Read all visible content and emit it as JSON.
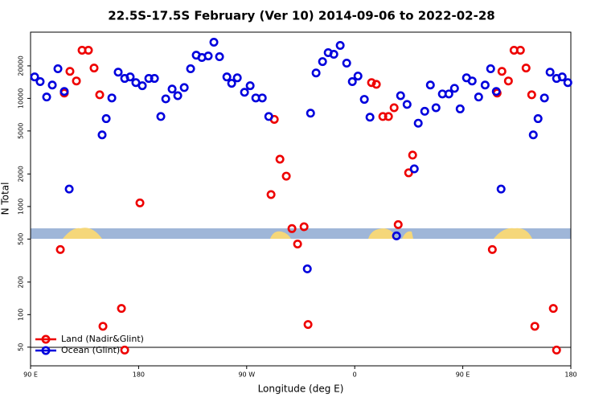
{
  "chart_data": {
    "type": "scatter",
    "title": "22.5S-17.5S February (Ver 10)   2014-09-06 to 2022-02-28",
    "xlabel": "Longitude (deg E)",
    "ylabel": "N Total",
    "xlim": [
      90,
      540
    ],
    "xticks": [
      {
        "value": 90,
        "label": "90 E"
      },
      {
        "value": 180,
        "label": "180"
      },
      {
        "value": 270,
        "label": "90 W"
      },
      {
        "value": 360,
        "label": "0"
      },
      {
        "value": 450,
        "label": "90 E"
      },
      {
        "value": 540,
        "label": "180"
      }
    ],
    "ylim": [
      33.6,
      41000
    ],
    "log_y": true,
    "yticks": [
      50,
      100,
      200,
      500,
      1000,
      2000,
      5000,
      10000,
      20000
    ],
    "legend": "lower left",
    "series": [
      {
        "name": "Land (Nadir&Glint)",
        "color": "#ee0000",
        "x": [
          114.8,
          118.1,
          122.8,
          128.2,
          132.9,
          138.2,
          142.9,
          147.6,
          150.3,
          165.7,
          168.4,
          181.1,
          290.3,
          293.0,
          297.7,
          303.0,
          307.7,
          312.4,
          317.8,
          321.1,
          374.0,
          378.0,
          383.4,
          388.1,
          392.8,
          396.2,
          404.9,
          408.2,
          474.6,
          478.6,
          482.6,
          488.0,
          492.7,
          498.0,
          502.7,
          507.4,
          510.0,
          525.4,
          528.1
        ],
        "values": [
          400,
          11200,
          17800,
          14500,
          27900,
          27900,
          19100,
          10800,
          78,
          114,
          47,
          1080,
          1290,
          6400,
          2740,
          1910,
          625,
          450,
          650,
          81,
          14000,
          13500,
          6800,
          6800,
          8200,
          680,
          2050,
          2990,
          400,
          11200,
          17800,
          14500,
          27900,
          27900,
          19100,
          10800,
          78,
          114,
          47
        ]
      },
      {
        "name": "Ocean (Glint)",
        "color": "#0000dd",
        "x": [
          93.4,
          98.0,
          103.4,
          108.1,
          112.8,
          118.1,
          122.2,
          149.6,
          153.0,
          157.7,
          163.0,
          168.4,
          173.0,
          177.7,
          183.1,
          188.5,
          193.2,
          198.5,
          202.6,
          207.9,
          212.6,
          218.0,
          223.3,
          228.0,
          232.7,
          238.0,
          242.7,
          247.4,
          253.5,
          257.5,
          262.2,
          268.2,
          272.9,
          277.6,
          283.0,
          288.4,
          320.5,
          323.2,
          327.8,
          333.2,
          337.9,
          342.6,
          347.9,
          353.3,
          358.0,
          362.7,
          368.0,
          372.7,
          394.8,
          398.2,
          403.6,
          409.6,
          412.9,
          418.3,
          423.0,
          427.7,
          433.0,
          438.4,
          443.1,
          447.8,
          453.1,
          457.8,
          463.2,
          468.6,
          473.2,
          477.9,
          481.9,
          508.7,
          512.7,
          518.0,
          522.7,
          528.1,
          532.8,
          537.5
        ],
        "values": [
          15800,
          14300,
          10300,
          13300,
          18800,
          11600,
          1450,
          4600,
          6500,
          10100,
          17500,
          15300,
          15800,
          14000,
          13100,
          15300,
          15300,
          6800,
          9900,
          12200,
          10600,
          12600,
          18800,
          25100,
          23900,
          24700,
          33100,
          24300,
          15800,
          13800,
          15500,
          11400,
          13100,
          10100,
          10100,
          6800,
          265,
          7300,
          17200,
          21900,
          26500,
          25600,
          30900,
          21200,
          14300,
          16100,
          9800,
          6700,
          535,
          10600,
          8800,
          2230,
          5900,
          7600,
          13300,
          8200,
          11000,
          11000,
          12400,
          8000,
          15500,
          14500,
          10300,
          13300,
          18800,
          11600,
          1450,
          4600,
          6500,
          10100,
          17500,
          15300,
          15800,
          14000
        ]
      }
    ]
  }
}
